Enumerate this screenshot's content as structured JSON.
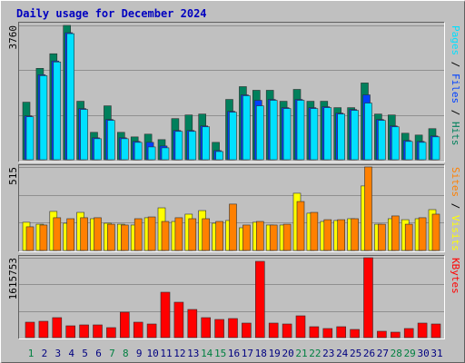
{
  "chart_data": [
    {
      "type": "bar",
      "title": "Daily usage for December 2024",
      "ylim": [
        0,
        3760
      ],
      "yticks": [
        3760
      ],
      "series": [
        {
          "name": "Hits",
          "color": "#00805c",
          "values": [
            1611,
            2558,
            2967,
            3760,
            1637,
            767,
            1509,
            767,
            639,
            716,
            563,
            1151,
            1253,
            1279,
            486,
            1688,
            2046,
            1944,
            1944,
            1637,
            1969,
            1637,
            1637,
            1458,
            1458,
            2149,
            1279,
            1253,
            742,
            691,
            870
          ]
        },
        {
          "name": "Files",
          "color": "#0040ff",
          "values": [
            1228,
            2379,
            2763,
            3556,
            1432,
            614,
            1126,
            614,
            512,
            486,
            384,
            818,
            818,
            946,
            256,
            1356,
            1816,
            1663,
            1688,
            1458,
            1688,
            1458,
            1484,
            1305,
            1407,
            1816,
            1126,
            946,
            537,
            512,
            665
          ]
        },
        {
          "name": "Pages",
          "color": "#00e0ff",
          "values": [
            1202,
            2353,
            2737,
            3530,
            1407,
            588,
            1100,
            588,
            486,
            358,
            333,
            793,
            793,
            921,
            230,
            1330,
            1791,
            1509,
            1663,
            1432,
            1663,
            1432,
            1458,
            1279,
            1381,
            1586,
            1100,
            921,
            512,
            486,
            640
          ]
        }
      ]
    },
    {
      "type": "bar",
      "ylim": [
        0,
        515
      ],
      "yticks": [
        515
      ],
      "series": [
        {
          "name": "Visits",
          "color": "#ffff00",
          "values": [
            174,
            162,
            241,
            168,
            235,
            196,
            168,
            162,
            157,
            202,
            263,
            179,
            224,
            246,
            168,
            185,
            140,
            174,
            157,
            157,
            353,
            230,
            179,
            185,
            196,
            398,
            162,
            196,
            190,
            196,
            252
          ]
        },
        {
          "name": "Sites",
          "color": "#ff8000",
          "values": [
            146,
            157,
            202,
            196,
            202,
            202,
            162,
            157,
            196,
            207,
            179,
            202,
            196,
            196,
            179,
            286,
            157,
            179,
            157,
            162,
            302,
            235,
            190,
            190,
            196,
            515,
            162,
            213,
            162,
            202,
            224
          ]
        }
      ]
    },
    {
      "type": "bar",
      "ylim": [
        0,
        1615753
      ],
      "yticks": [
        1615753
      ],
      "categories": [
        "1",
        "2",
        "3",
        "4",
        "5",
        "6",
        "7",
        "8",
        "9",
        "10",
        "11",
        "12",
        "13",
        "14",
        "15",
        "16",
        "17",
        "18",
        "19",
        "20",
        "21",
        "22",
        "23",
        "24",
        "25",
        "26",
        "27",
        "28",
        "29",
        "30",
        "31"
      ],
      "category_colors": [
        "#008040",
        "#000080",
        "#000080",
        "#000080",
        "#000080",
        "#000080",
        "#008040",
        "#008040",
        "#000080",
        "#000080",
        "#000080",
        "#000080",
        "#000080",
        "#008040",
        "#008040",
        "#000080",
        "#000080",
        "#000080",
        "#000080",
        "#000080",
        "#008040",
        "#008040",
        "#000080",
        "#000080",
        "#000080",
        "#000080",
        "#000080",
        "#008040",
        "#008040",
        "#000080",
        "#000080"
      ],
      "series": [
        {
          "name": "KBytes",
          "color": "#ff0000",
          "values": [
            312137,
            330498,
            403942,
            238693,
            257054,
            257054,
            201971,
            514108,
            312137,
            275415,
            918050,
            716079,
            569191,
            403942,
            367220,
            385581,
            293776,
            1542324,
            293776,
            275415,
            440664,
            220332,
            183610,
            220332,
            165249,
            1615753,
            128527,
            110166,
            183610,
            293776,
            275415
          ]
        }
      ]
    }
  ]
}
